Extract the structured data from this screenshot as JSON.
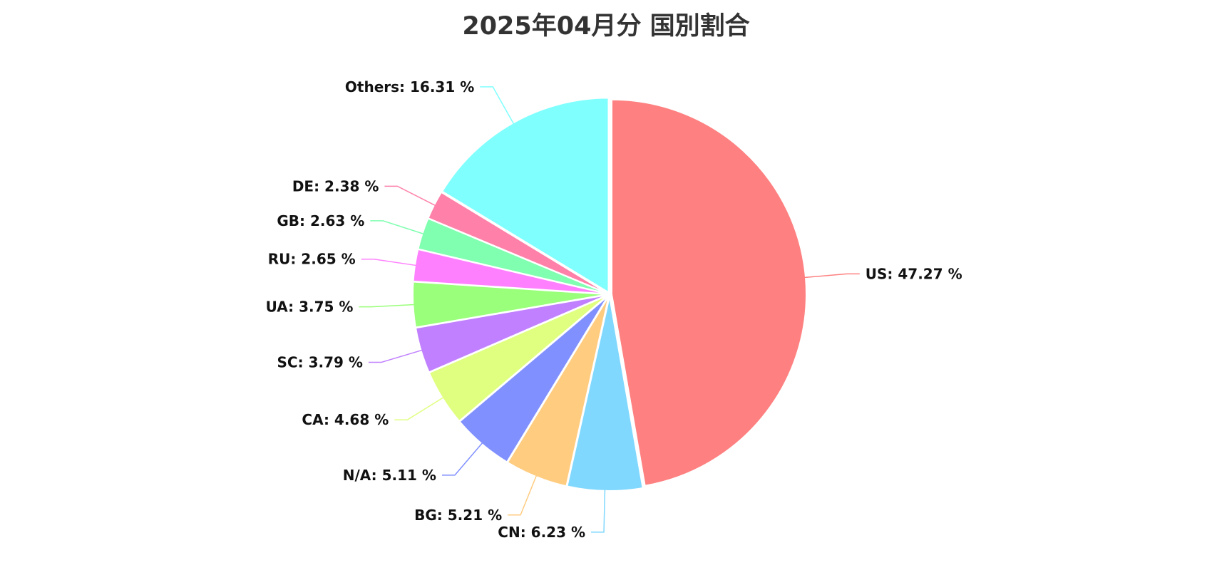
{
  "chart_data": {
    "type": "pie",
    "title": "2025年04月分 国別割合",
    "slices": [
      {
        "label": "US",
        "value": 47.27,
        "color": "#ff8080"
      },
      {
        "label": "CN",
        "value": 6.23,
        "color": "#80d8ff"
      },
      {
        "label": "BG",
        "value": 5.21,
        "color": "#ffcc80"
      },
      {
        "label": "N/A",
        "value": 5.11,
        "color": "#8090ff"
      },
      {
        "label": "CA",
        "value": 4.68,
        "color": "#e0ff80"
      },
      {
        "label": "SC",
        "value": 3.79,
        "color": "#c080ff"
      },
      {
        "label": "UA",
        "value": 3.75,
        "color": "#9aff7a"
      },
      {
        "label": "RU",
        "value": 2.65,
        "color": "#ff80ff"
      },
      {
        "label": "GB",
        "value": 2.63,
        "color": "#80ffb0"
      },
      {
        "label": "DE",
        "value": 2.38,
        "color": "#ff80a8"
      },
      {
        "label": "Others",
        "value": 16.31,
        "color": "#80ffff"
      }
    ],
    "label_format": "{label}: {value} %",
    "start_angle": "12 o'clock",
    "direction": "clockwise",
    "legend": "none"
  }
}
